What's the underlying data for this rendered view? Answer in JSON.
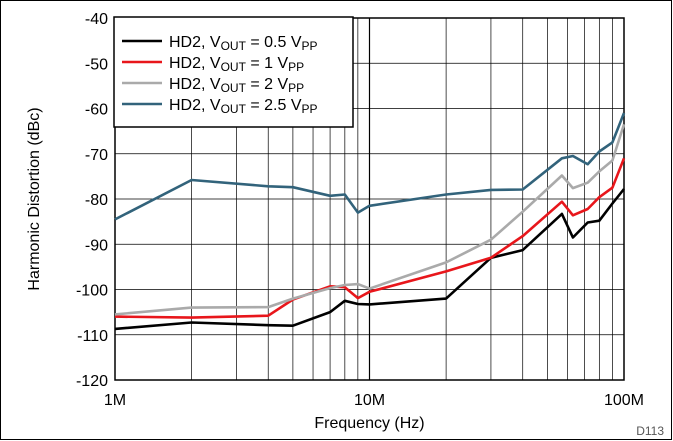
{
  "chart_data": {
    "type": "line",
    "xlabel": "Frequency (Hz)",
    "ylabel": "Harmonic Distortion (dBc)",
    "x_scale": "log",
    "xlim": [
      1000000,
      100000000
    ],
    "ylim": [
      -120,
      -40
    ],
    "x_ticks": [
      {
        "value": 1000000,
        "label": "1M"
      },
      {
        "value": 10000000,
        "label": "10M"
      },
      {
        "value": 100000000,
        "label": "100M"
      }
    ],
    "y_ticks": [
      {
        "value": -40,
        "label": "-40"
      },
      {
        "value": -50,
        "label": "-50"
      },
      {
        "value": -60,
        "label": "-60"
      },
      {
        "value": -70,
        "label": "-70"
      },
      {
        "value": -80,
        "label": "-80"
      },
      {
        "value": -90,
        "label": "-90"
      },
      {
        "value": -100,
        "label": "-100"
      },
      {
        "value": -110,
        "label": "-110"
      },
      {
        "value": -120,
        "label": "-120"
      }
    ],
    "grid": true,
    "legend_position": "top-left",
    "figure_code": "D113",
    "series": [
      {
        "name": "HD2, V",
        "name_sub": "OUT",
        "name_tail": " = 0.5 V",
        "name_sub2": "PP",
        "color": "#000000",
        "points": [
          [
            1000000,
            -108.7
          ],
          [
            2000000,
            -107.3
          ],
          [
            4000000,
            -107.9
          ],
          [
            5000000,
            -108.0
          ],
          [
            7000000,
            -105.0
          ],
          [
            8000000,
            -102.5
          ],
          [
            9000000,
            -103.2
          ],
          [
            10000000,
            -103.3
          ],
          [
            20000000,
            -102.0
          ],
          [
            30000000,
            -93.0
          ],
          [
            40000000,
            -91.3
          ],
          [
            57000000,
            -83.3
          ],
          [
            63000000,
            -88.5
          ],
          [
            72000000,
            -85.2
          ],
          [
            80000000,
            -84.8
          ],
          [
            90000000,
            -81.0
          ],
          [
            100000000,
            -77.8
          ]
        ]
      },
      {
        "name": "HD2, V",
        "name_sub": "OUT",
        "name_tail": " = 1 V",
        "name_sub2": "PP",
        "color": "#e8161b",
        "points": [
          [
            1000000,
            -106.0
          ],
          [
            2000000,
            -106.2
          ],
          [
            4000000,
            -105.8
          ],
          [
            5000000,
            -102.2
          ],
          [
            7000000,
            -99.3
          ],
          [
            8000000,
            -99.5
          ],
          [
            9000000,
            -101.9
          ],
          [
            10000000,
            -100.5
          ],
          [
            20000000,
            -96.0
          ],
          [
            30000000,
            -93.0
          ],
          [
            40000000,
            -88.2
          ],
          [
            57000000,
            -80.6
          ],
          [
            63000000,
            -83.6
          ],
          [
            72000000,
            -82.2
          ],
          [
            80000000,
            -79.6
          ],
          [
            90000000,
            -77.5
          ],
          [
            100000000,
            -71.0
          ]
        ]
      },
      {
        "name": "HD2, V",
        "name_sub": "OUT",
        "name_tail": " = 2 V",
        "name_sub2": "PP",
        "color": "#aaaaaa",
        "points": [
          [
            1000000,
            -105.5
          ],
          [
            2000000,
            -104.0
          ],
          [
            4000000,
            -103.9
          ],
          [
            5000000,
            -102.0
          ],
          [
            7000000,
            -99.7
          ],
          [
            8000000,
            -99.0
          ],
          [
            9000000,
            -98.8
          ],
          [
            10000000,
            -99.8
          ],
          [
            20000000,
            -94.0
          ],
          [
            30000000,
            -89.0
          ],
          [
            40000000,
            -82.8
          ],
          [
            57000000,
            -74.8
          ],
          [
            63000000,
            -77.6
          ],
          [
            72000000,
            -76.4
          ],
          [
            80000000,
            -73.9
          ],
          [
            90000000,
            -71.5
          ],
          [
            100000000,
            -63.5
          ]
        ]
      },
      {
        "name": "HD2, V",
        "name_sub": "OUT",
        "name_tail": " = 2.5 V",
        "name_sub2": "PP",
        "color": "#32637b",
        "points": [
          [
            1000000,
            -84.5
          ],
          [
            2000000,
            -75.8
          ],
          [
            4000000,
            -77.2
          ],
          [
            5000000,
            -77.4
          ],
          [
            7000000,
            -79.3
          ],
          [
            8000000,
            -79.0
          ],
          [
            9000000,
            -83.0
          ],
          [
            10000000,
            -81.5
          ],
          [
            20000000,
            -79.0
          ],
          [
            30000000,
            -78.0
          ],
          [
            40000000,
            -77.9
          ],
          [
            57000000,
            -71.0
          ],
          [
            63000000,
            -70.5
          ],
          [
            72000000,
            -72.3
          ],
          [
            80000000,
            -69.5
          ],
          [
            90000000,
            -67.5
          ],
          [
            100000000,
            -61.0
          ]
        ]
      }
    ]
  }
}
